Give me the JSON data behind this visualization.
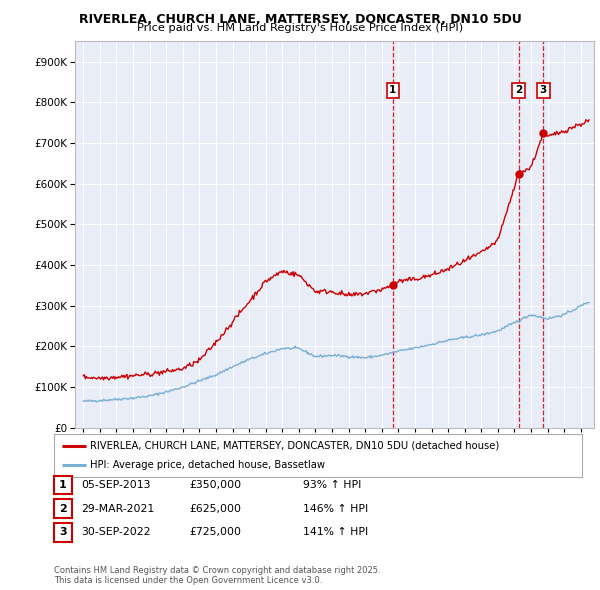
{
  "title1": "RIVERLEA, CHURCH LANE, MATTERSEY, DONCASTER, DN10 5DU",
  "title2": "Price paid vs. HM Land Registry's House Price Index (HPI)",
  "legend_line1": "RIVERLEA, CHURCH LANE, MATTERSEY, DONCASTER, DN10 5DU (detached house)",
  "legend_line2": "HPI: Average price, detached house, Bassetlaw",
  "transactions": [
    {
      "num": 1,
      "date": "05-SEP-2013",
      "price": "£350,000",
      "hpi": "93% ↑ HPI",
      "year": 2013.67,
      "price_val": 350000
    },
    {
      "num": 2,
      "date": "29-MAR-2021",
      "price": "£625,000",
      "hpi": "146% ↑ HPI",
      "year": 2021.25,
      "price_val": 625000
    },
    {
      "num": 3,
      "date": "30-SEP-2022",
      "price": "£725,000",
      "hpi": "141% ↑ HPI",
      "year": 2022.75,
      "price_val": 725000
    }
  ],
  "footer": "Contains HM Land Registry data © Crown copyright and database right 2025.\nThis data is licensed under the Open Government Licence v3.0.",
  "price_line_color": "#cc0000",
  "hpi_line_color": "#7bafd4",
  "background_color": "#ffffff",
  "plot_bg_color": "#e8edf8",
  "grid_color": "#ffffff",
  "vline_color": "#cc0000",
  "ylim": [
    0,
    950000
  ],
  "yticks": [
    0,
    100000,
    200000,
    300000,
    400000,
    500000,
    600000,
    700000,
    800000,
    900000
  ],
  "xlim_start": 1994.5,
  "xlim_end": 2025.8
}
